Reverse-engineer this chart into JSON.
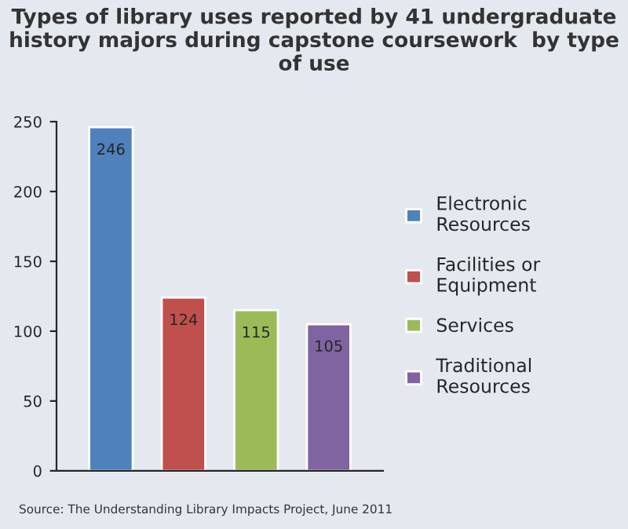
{
  "chart_data": {
    "type": "bar",
    "title": "Types of library uses reported by 41 undergraduate history majors during capstone coursework  by type of use",
    "categories": [
      null
    ],
    "series": [
      {
        "name": "Electronic\nResources",
        "color": "#4f81bd",
        "values": [
          246
        ]
      },
      {
        "name": "Facilities or\nEquipment",
        "color": "#c0504d",
        "values": [
          124
        ]
      },
      {
        "name": "Services",
        "color": "#9bbb59",
        "values": [
          115
        ]
      },
      {
        "name": "Traditional\nResources",
        "color": "#8064a2",
        "values": [
          105
        ]
      }
    ],
    "ylim": [
      0,
      250
    ],
    "yticks": [
      0,
      50,
      100,
      150,
      200,
      250
    ],
    "data_labels": true,
    "grid": false,
    "legend": "right",
    "annotations": [
      "Source: The Understanding Library Impacts Project, June 2011"
    ]
  }
}
